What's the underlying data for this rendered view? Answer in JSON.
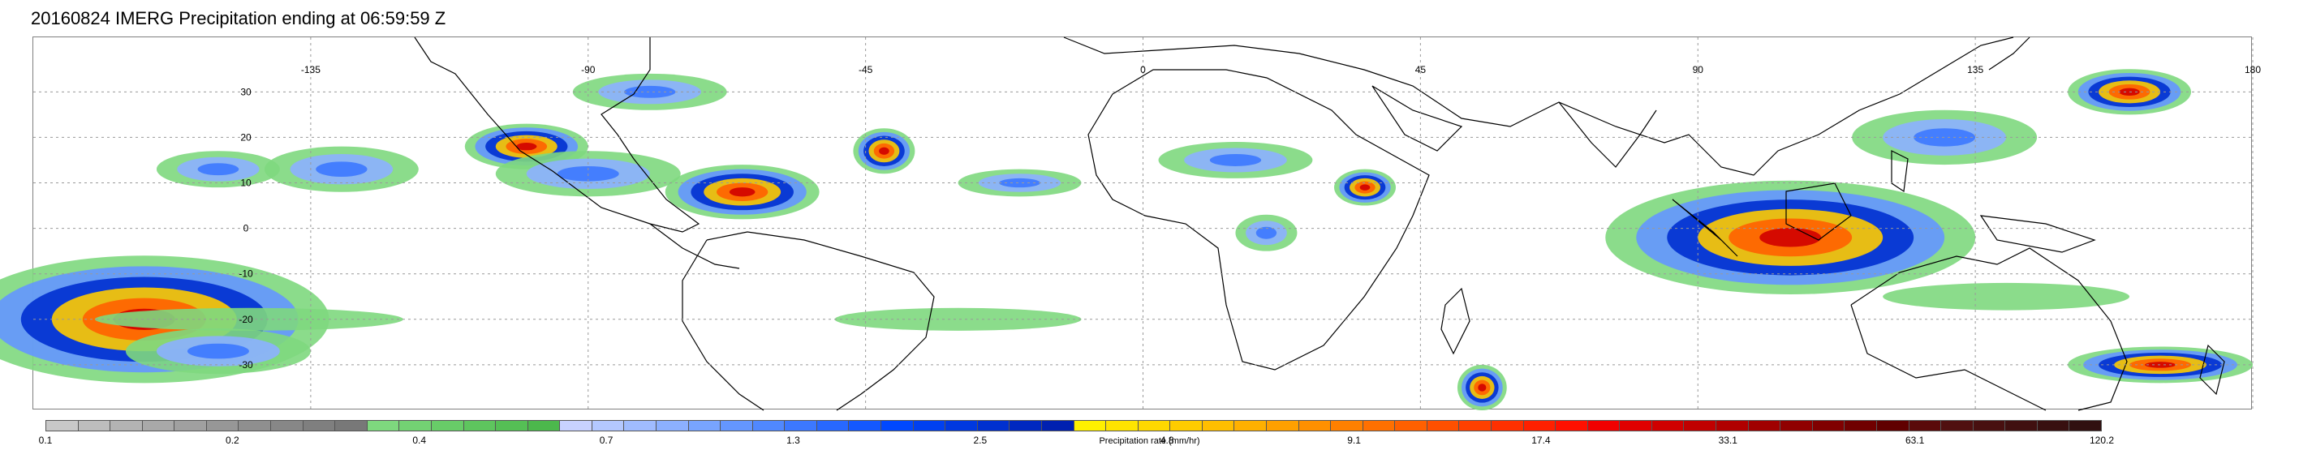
{
  "title": "20160824 IMERG Precipitation ending at 06:59:59 Z",
  "map": {
    "lon_labels": [
      "-135",
      "-90",
      "-45",
      "0",
      "45",
      "90",
      "135",
      "180"
    ],
    "lat_labels": [
      "30",
      "20",
      "10",
      "0",
      "-10",
      "-20",
      "-30"
    ],
    "ocean_color": "#ffffff",
    "coastline_color": "#000000"
  },
  "colorbar": {
    "label": "Precipitation rate (mm/hr)",
    "tick_labels": [
      "0.1",
      "0.2",
      "0.4",
      "0.7",
      "1.3",
      "2.5",
      "4.8",
      "9.1",
      "17.4",
      "33.1",
      "63.1",
      "120.2"
    ],
    "colors": [
      "#c8c8c8",
      "#bdbdbd",
      "#b3b3b3",
      "#a9a9a9",
      "#a0a0a0",
      "#979797",
      "#8f8f8f",
      "#878787",
      "#7f7f7f",
      "#787878",
      "#7ed87e",
      "#73d273",
      "#68cc68",
      "#5ec55e",
      "#55bf55",
      "#4cb84c",
      "#c8d2ff",
      "#b4c8ff",
      "#a0bcff",
      "#8cb0ff",
      "#78a4ff",
      "#6496ff",
      "#5088ff",
      "#3c78ff",
      "#2868ff",
      "#1458ff",
      "#0048ff",
      "#0040f0",
      "#0038e0",
      "#0030d0",
      "#0028c0",
      "#0020b0",
      "#fff000",
      "#ffe400",
      "#ffd800",
      "#ffcc00",
      "#ffbe00",
      "#ffb000",
      "#ffa000",
      "#ff9000",
      "#ff8000",
      "#ff7000",
      "#ff6000",
      "#ff5000",
      "#ff4000",
      "#ff3000",
      "#ff2000",
      "#ff1000",
      "#f00000",
      "#e00000",
      "#d00000",
      "#c00000",
      "#b00000",
      "#a00000",
      "#900000",
      "#800000",
      "#700000",
      "#600000",
      "#5a0a0a",
      "#501010",
      "#481010",
      "#401010",
      "#381010",
      "#301010"
    ]
  },
  "precip_blobs": [
    {
      "lon": -162,
      "lat": -20,
      "rx": 60,
      "ry": 28,
      "level": "heavy"
    },
    {
      "lon": -150,
      "lat": -27,
      "rx": 30,
      "ry": 10,
      "level": "moderate"
    },
    {
      "lon": -150,
      "lat": 13,
      "rx": 20,
      "ry": 8,
      "level": "moderate"
    },
    {
      "lon": -130,
      "lat": 13,
      "rx": 25,
      "ry": 10,
      "level": "moderate"
    },
    {
      "lon": -100,
      "lat": 18,
      "rx": 20,
      "ry": 10,
      "level": "heavy"
    },
    {
      "lon": -90,
      "lat": 12,
      "rx": 30,
      "ry": 10,
      "level": "moderate"
    },
    {
      "lon": -80,
      "lat": 30,
      "rx": 25,
      "ry": 8,
      "level": "moderate"
    },
    {
      "lon": -65,
      "lat": 8,
      "rx": 25,
      "ry": 12,
      "level": "heavy"
    },
    {
      "lon": -42,
      "lat": 17,
      "rx": 10,
      "ry": 10,
      "level": "heavy"
    },
    {
      "lon": -20,
      "lat": 10,
      "rx": 20,
      "ry": 6,
      "level": "moderate"
    },
    {
      "lon": 15,
      "lat": 15,
      "rx": 25,
      "ry": 8,
      "level": "moderate"
    },
    {
      "lon": 36,
      "lat": 9,
      "rx": 10,
      "ry": 8,
      "level": "heavy"
    },
    {
      "lon": 20,
      "lat": -1,
      "rx": 10,
      "ry": 8,
      "level": "moderate"
    },
    {
      "lon": 105,
      "lat": -2,
      "rx": 60,
      "ry": 25,
      "level": "heavy"
    },
    {
      "lon": 130,
      "lat": 20,
      "rx": 30,
      "ry": 12,
      "level": "moderate"
    },
    {
      "lon": 160,
      "lat": 30,
      "rx": 20,
      "ry": 10,
      "level": "heavy"
    },
    {
      "lon": 165,
      "lat": -30,
      "rx": 30,
      "ry": 8,
      "level": "heavy"
    },
    {
      "lon": 55,
      "lat": -35,
      "rx": 8,
      "ry": 10,
      "level": "heavy"
    },
    {
      "lon": -145,
      "lat": -20,
      "rx": 50,
      "ry": 5,
      "level": "light"
    },
    {
      "lon": -30,
      "lat": -20,
      "rx": 40,
      "ry": 5,
      "level": "light"
    },
    {
      "lon": 140,
      "lat": -15,
      "rx": 40,
      "ry": 6,
      "level": "light"
    }
  ]
}
